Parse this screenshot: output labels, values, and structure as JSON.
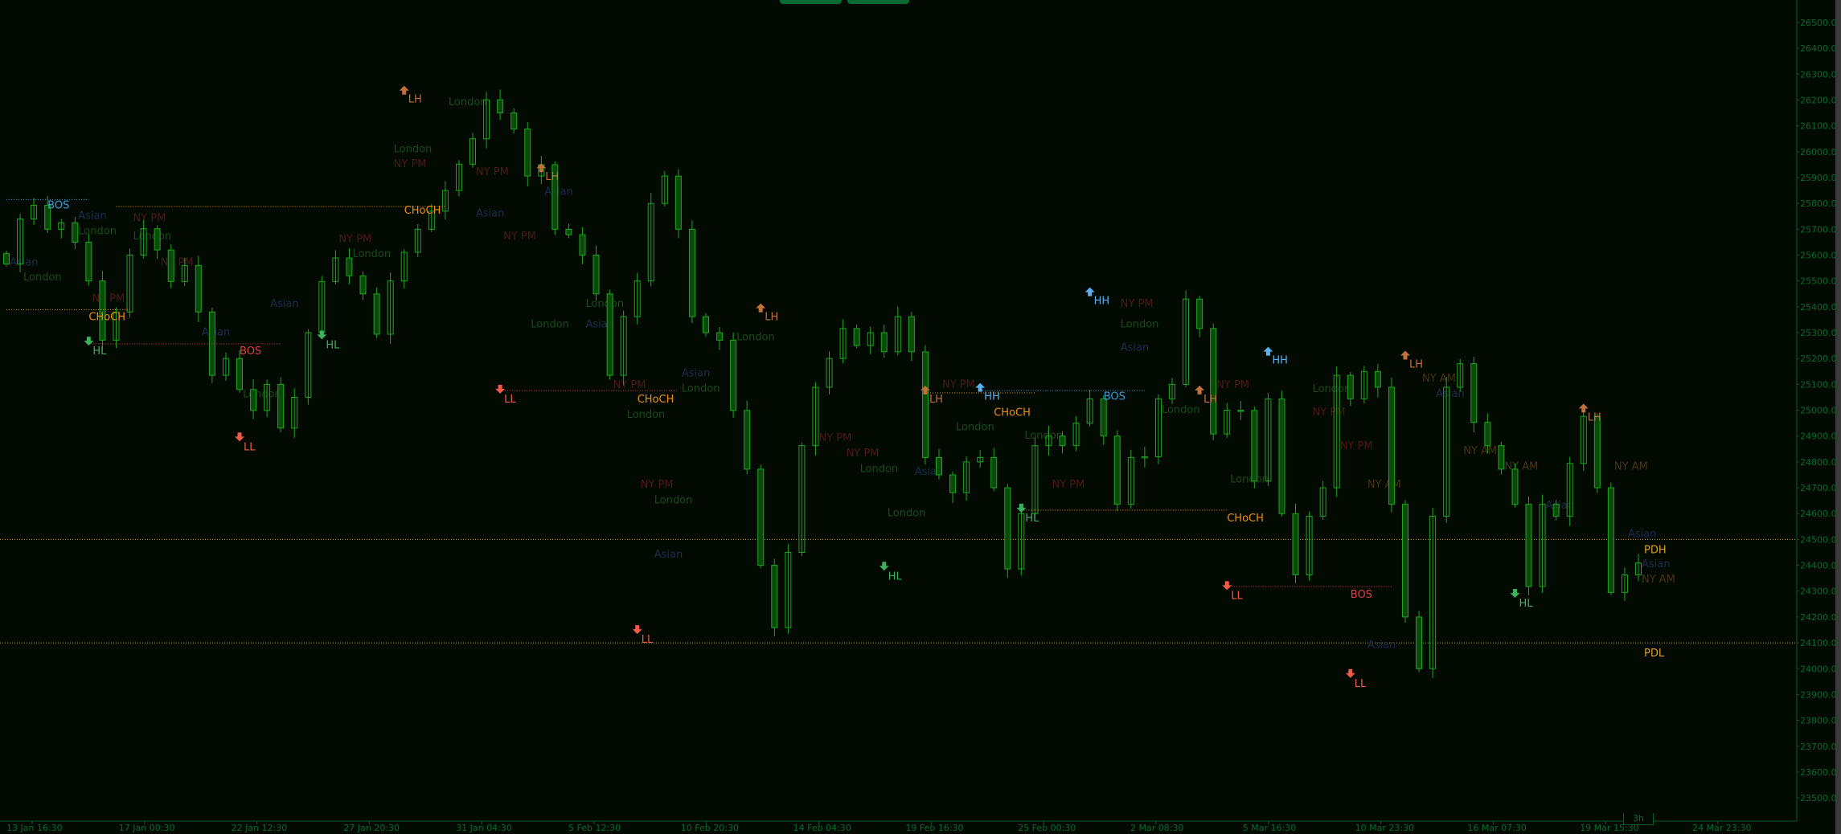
{
  "toolbar": {
    "buttons": [
      {
        "name": "top-button-1"
      },
      {
        "name": "top-button-2"
      }
    ]
  },
  "timeframe_badge": "3h",
  "colors": {
    "background": "#020a02",
    "axis": "#0a5a2a",
    "axis_text": "#0a6a30",
    "candle": "#1fa51f",
    "bear_fill": "#0b4a0b",
    "bos_bull": "#3a9ee0",
    "bos_bear": "#e04040",
    "choch": "#f0900a",
    "hl": "#3cb060",
    "ll": "#f05a48",
    "lh": "#c0703a",
    "hh": "#5ab0f0",
    "pdh_pdl": "#e0a020",
    "session_asian": "#1c2c50",
    "session_london": "#1b4a1b",
    "session_nypm": "#4c1a14",
    "session_nyam": "#4a3212"
  },
  "chart_data": {
    "type": "candlestick",
    "title": "",
    "ylim": [
      23450,
      26560
    ],
    "y_ticks": [
      26500,
      26400,
      26300,
      26200,
      26100,
      26000,
      25900,
      25800,
      25700,
      25600,
      25500,
      25400,
      25300,
      25200,
      25100,
      25000,
      24900,
      24800,
      24700,
      24600,
      24500,
      24400,
      24300,
      24200,
      24100,
      24000,
      23900,
      23800,
      23700,
      23600,
      23500
    ],
    "y_tick_suffix": ".0",
    "x_tick_labels": [
      "13 Jan 16:30",
      "17 Jan 00:30",
      "22 Jan 12:30",
      "27 Jan 20:30",
      "31 Jan 04:30",
      "5 Feb 12:30",
      "10 Feb 20:30",
      "14 Feb 04:30",
      "19 Feb 16:30",
      "25 Feb 00:30",
      "2 Mar 08:30",
      "5 Mar 16:30",
      "10 Mar 23:30",
      "16 Mar 07:30",
      "19 Mar 15:30",
      "24 Mar 23:30"
    ],
    "grid": false,
    "closes": [
      25566,
      25740,
      25793,
      25700,
      25725,
      25650,
      25500,
      25271,
      25380,
      25600,
      25702,
      25620,
      25498,
      25560,
      25380,
      25135,
      25200,
      25080,
      24999,
      25100,
      24931,
      25050,
      25300,
      25498,
      25589,
      25520,
      25450,
      25294,
      25500,
      25611,
      25700,
      25770,
      25850,
      25952,
      26050,
      26201,
      26150,
      26088,
      25906,
      25950,
      25700,
      25679,
      25600,
      25450,
      25135,
      25362,
      25500,
      25800,
      25906,
      25700,
      25362,
      25300,
      25271,
      24999,
      24772,
      24400,
      24159,
      24450,
      24863,
      25089,
      25200,
      25316,
      25250,
      25300,
      25226,
      25362,
      25226,
      24817,
      24750,
      24681,
      24800,
      24817,
      24700,
      24386,
      24600,
      24863,
      24900,
      24863,
      24950,
      25044,
      24900,
      24636,
      24817,
      24820,
      25044,
      25100,
      25430,
      25316,
      24908,
      25000,
      24999,
      24726,
      25044,
      24600,
      24363,
      24590,
      24700,
      25135,
      25044,
      25150,
      25089,
      24636,
      24200,
      24000,
      24590,
      25089,
      25180,
      24953,
      24863,
      24772,
      24636,
      24318,
      24636,
      24590,
      24794,
      24976,
      24700,
      24295,
      24363,
      24409
    ],
    "levels": [
      {
        "label": "PDH",
        "price": 24500,
        "type": "pdh"
      },
      {
        "label": "PDL",
        "price": 24100,
        "type": "pdl"
      }
    ],
    "structure_lines": [
      {
        "price": 25815,
        "from": 0,
        "to": 6,
        "type": "bos_bull"
      },
      {
        "price": 25389,
        "from": 0,
        "to": 9,
        "type": "choch"
      },
      {
        "price": 25257,
        "from": 6,
        "to": 20,
        "type": "bos_bear"
      },
      {
        "price": 25788,
        "from": 8,
        "to": 32,
        "type": "choch"
      },
      {
        "price": 25076,
        "from": 36,
        "to": 49,
        "type": "bos_bear"
      },
      {
        "price": 25067,
        "from": 67,
        "to": 75,
        "type": "choch"
      },
      {
        "price": 25076,
        "from": 71,
        "to": 83,
        "type": "bos_bull"
      },
      {
        "price": 24613,
        "from": 74,
        "to": 89,
        "type": "choch"
      },
      {
        "price": 24318,
        "from": 89,
        "to": 101,
        "type": "bos_bear"
      }
    ],
    "annotations": [
      {
        "text": "BOS",
        "idx": 3,
        "price": 25780,
        "type": "bos_bull"
      },
      {
        "text": "CHoCH",
        "idx": 6,
        "price": 25348,
        "type": "choch"
      },
      {
        "text": "HL",
        "idx": 6,
        "price": 25216,
        "type": "hl",
        "arrow": "down"
      },
      {
        "text": "BOS",
        "idx": 17,
        "price": 25216,
        "type": "bos_bear"
      },
      {
        "text": "LL",
        "idx": 17,
        "price": 24845,
        "type": "ll",
        "arrow": "down"
      },
      {
        "text": "HL",
        "idx": 23,
        "price": 25240,
        "type": "hl",
        "arrow": "down"
      },
      {
        "text": "CHoCH",
        "idx": 29,
        "price": 25760,
        "type": "choch"
      },
      {
        "text": "LH",
        "idx": 29,
        "price": 26190,
        "type": "lh",
        "arrow": "up"
      },
      {
        "text": "LH",
        "idx": 39,
        "price": 25890,
        "type": "lh",
        "arrow": "up"
      },
      {
        "text": "LL",
        "idx": 36,
        "price": 25030,
        "type": "ll",
        "arrow": "down"
      },
      {
        "text": "CHoCH",
        "idx": 46,
        "price": 25030,
        "type": "choch"
      },
      {
        "text": "LL",
        "idx": 46,
        "price": 24100,
        "type": "ll",
        "arrow": "down"
      },
      {
        "text": "LH",
        "idx": 55,
        "price": 25348,
        "type": "lh",
        "arrow": "up"
      },
      {
        "text": "HL",
        "idx": 64,
        "price": 24345,
        "type": "hl",
        "arrow": "down"
      },
      {
        "text": "LH",
        "idx": 67,
        "price": 25030,
        "type": "lh",
        "arrow": "up"
      },
      {
        "text": "HH",
        "idx": 71,
        "price": 25040,
        "type": "hh",
        "arrow": "up"
      },
      {
        "text": "CHoCH",
        "idx": 72,
        "price": 25025,
        "type": "choch"
      },
      {
        "text": "BOS",
        "idx": 80,
        "price": 25040,
        "type": "bos_bull"
      },
      {
        "text": "HH",
        "idx": 79,
        "price": 25410,
        "type": "hh",
        "arrow": "up"
      },
      {
        "text": "HL",
        "idx": 74,
        "price": 24570,
        "type": "hl",
        "arrow": "down"
      },
      {
        "text": "LH",
        "idx": 87,
        "price": 25030,
        "type": "lh",
        "arrow": "up"
      },
      {
        "text": "CHoCH",
        "idx": 89,
        "price": 24570,
        "type": "choch"
      },
      {
        "text": "LL",
        "idx": 89,
        "price": 24270,
        "type": "ll",
        "arrow": "down"
      },
      {
        "text": "HH",
        "idx": 92,
        "price": 25180,
        "type": "hh",
        "arrow": "up"
      },
      {
        "text": "BOS",
        "idx": 98,
        "price": 24275,
        "type": "bos_bear"
      },
      {
        "text": "LL",
        "idx": 98,
        "price": 23930,
        "type": "ll",
        "arrow": "down"
      },
      {
        "text": "LH",
        "idx": 102,
        "price": 25165,
        "type": "lh",
        "arrow": "up"
      },
      {
        "text": "HL",
        "idx": 110,
        "price": 24240,
        "type": "hl",
        "arrow": "down"
      },
      {
        "text": "LH",
        "idx": 115,
        "price": 24960,
        "type": "lh",
        "arrow": "up"
      }
    ],
    "session_labels": [
      {
        "text": "Asian",
        "idx": 0,
        "price": 25560,
        "type": "asian"
      },
      {
        "text": "London",
        "idx": 1,
        "price": 25540,
        "type": "london"
      },
      {
        "text": "Asian",
        "idx": 5,
        "price": 25740,
        "type": "asian"
      },
      {
        "text": "London",
        "idx": 5,
        "price": 25700,
        "type": "london"
      },
      {
        "text": "NY PM",
        "idx": 9,
        "price": 25730,
        "type": "nypm"
      },
      {
        "text": "London",
        "idx": 9,
        "price": 25660,
        "type": "london"
      },
      {
        "text": "NY PM",
        "idx": 11,
        "price": 25560,
        "type": "nypm"
      },
      {
        "text": "NY PM",
        "idx": 6,
        "price": 25420,
        "type": "nypm"
      },
      {
        "text": "Asian",
        "idx": 14,
        "price": 25290,
        "type": "asian"
      },
      {
        "text": "London",
        "idx": 17,
        "price": 25050,
        "type": "london"
      },
      {
        "text": "Asian",
        "idx": 19,
        "price": 25400,
        "type": "asian"
      },
      {
        "text": "NY PM",
        "idx": 24,
        "price": 25650,
        "type": "nypm"
      },
      {
        "text": "London",
        "idx": 25,
        "price": 25620,
        "type": "london"
      },
      {
        "text": "NY PM",
        "idx": 28,
        "price": 25940,
        "type": "nypm"
      },
      {
        "text": "London",
        "idx": 28,
        "price": 25980,
        "type": "london"
      },
      {
        "text": "London",
        "idx": 32,
        "price": 26180,
        "type": "london"
      },
      {
        "text": "NY PM",
        "idx": 34,
        "price": 25910,
        "type": "nypm"
      },
      {
        "text": "Asian",
        "idx": 34,
        "price": 25750,
        "type": "asian"
      },
      {
        "text": "NY PM",
        "idx": 36,
        "price": 25660,
        "type": "nypm"
      },
      {
        "text": "Asian",
        "idx": 39,
        "price": 25880,
        "type": "asian"
      },
      {
        "text": "London",
        "idx": 38,
        "price": 25320,
        "type": "london"
      },
      {
        "text": "London",
        "idx": 42,
        "price": 25400,
        "type": "london"
      },
      {
        "text": "Asian",
        "idx": 42,
        "price": 25320,
        "type": "asian"
      },
      {
        "text": "NY PM",
        "idx": 44,
        "price": 25030,
        "type": "nypm"
      },
      {
        "text": "London",
        "idx": 45,
        "price": 24990,
        "type": "london"
      },
      {
        "text": "NY PM",
        "idx": 46,
        "price": 24700,
        "type": "nypm"
      },
      {
        "text": "London",
        "idx": 47,
        "price": 24640,
        "type": "london"
      },
      {
        "text": "Asian",
        "idx": 47,
        "price": 24430,
        "type": "asian"
      },
      {
        "text": "Asian",
        "idx": 49,
        "price": 25130,
        "type": "asian"
      },
      {
        "text": "London",
        "idx": 49,
        "price": 25090,
        "type": "london"
      },
      {
        "text": "London",
        "idx": 53,
        "price": 25270,
        "type": "london"
      },
      {
        "text": "NY PM",
        "idx": 59,
        "price": 24880,
        "type": "nypm"
      },
      {
        "text": "NY PM",
        "idx": 61,
        "price": 24850,
        "type": "nypm"
      },
      {
        "text": "London",
        "idx": 62,
        "price": 24780,
        "type": "london"
      },
      {
        "text": "London",
        "idx": 64,
        "price": 24590,
        "type": "london"
      },
      {
        "text": "NY PM",
        "idx": 68,
        "price": 25040,
        "type": "nypm"
      },
      {
        "text": "London",
        "idx": 69,
        "price": 24950,
        "type": "london"
      },
      {
        "text": "Asian",
        "idx": 66,
        "price": 24750,
        "type": "asian"
      },
      {
        "text": "London",
        "idx": 74,
        "price": 24890,
        "type": "london"
      },
      {
        "text": "NY PM",
        "idx": 76,
        "price": 24700,
        "type": "nypm"
      },
      {
        "text": "NY PM",
        "idx": 81,
        "price": 25400,
        "type": "nypm"
      },
      {
        "text": "London",
        "idx": 81,
        "price": 25320,
        "type": "london"
      },
      {
        "text": "Asian",
        "idx": 81,
        "price": 25230,
        "type": "asian"
      },
      {
        "text": "London",
        "idx": 84,
        "price": 24990,
        "type": "london"
      },
      {
        "text": "NY PM",
        "idx": 88,
        "price": 25030,
        "type": "nypm"
      },
      {
        "text": "London",
        "idx": 89,
        "price": 24720,
        "type": "london"
      },
      {
        "text": "London",
        "idx": 95,
        "price": 25070,
        "type": "london"
      },
      {
        "text": "NY PM",
        "idx": 95,
        "price": 24980,
        "type": "nypm"
      },
      {
        "text": "NY PM",
        "idx": 97,
        "price": 24850,
        "type": "nypm"
      },
      {
        "text": "NY AM",
        "idx": 99,
        "price": 24700,
        "type": "nyam"
      },
      {
        "text": "Asian",
        "idx": 99,
        "price": 24080,
        "type": "asian"
      },
      {
        "text": "NY AM",
        "idx": 103,
        "price": 25110,
        "type": "nyam"
      },
      {
        "text": "Asian",
        "idx": 104,
        "price": 25060,
        "type": "asian"
      },
      {
        "text": "NY AM",
        "idx": 106,
        "price": 24830,
        "type": "nyam"
      },
      {
        "text": "NY AM",
        "idx": 109,
        "price": 24770,
        "type": "nyam"
      },
      {
        "text": "Asian",
        "idx": 112,
        "price": 24620,
        "type": "asian"
      },
      {
        "text": "NY AM",
        "idx": 117,
        "price": 24770,
        "type": "nyam"
      },
      {
        "text": "Asian",
        "idx": 118,
        "price": 24490,
        "type": "asian"
      },
      {
        "text": "Asian",
        "idx": 119,
        "price": 24420,
        "type": "asian"
      },
      {
        "text": "NY AM",
        "idx": 119,
        "price": 24380,
        "type": "nyam"
      }
    ]
  }
}
